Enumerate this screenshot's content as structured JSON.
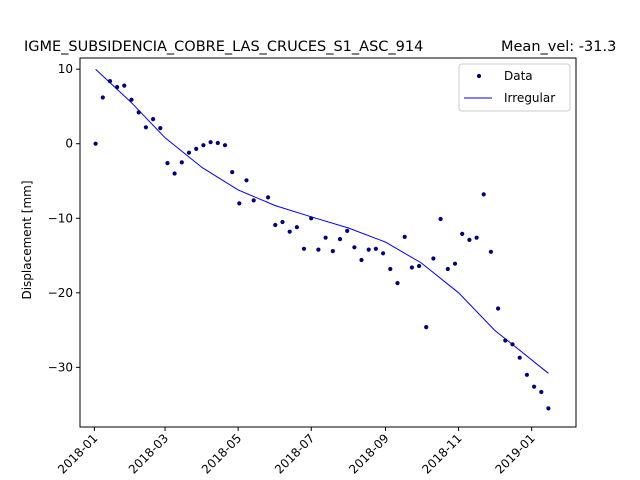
{
  "chart_data": {
    "type": "scatter",
    "title": "IGME_SUBSIDENCIA_COBRE_LAS_CRUCES_S1_ASC_914",
    "subtitle": "Mean_vel: -31.3",
    "xlabel": "",
    "ylabel": "Displacement [mm]",
    "xlim": [
      "2017-12-20",
      "2019-02-07"
    ],
    "ylim": [
      -38,
      11.5
    ],
    "x_ticks": [
      "2018-01",
      "2018-03",
      "2018-05",
      "2018-07",
      "2018-09",
      "2018-11",
      "2019-01"
    ],
    "y_ticks": [
      10,
      0,
      -10,
      -20,
      -30
    ],
    "legend_position": "top-right",
    "grid": false,
    "colors": {
      "data": "#00007f",
      "fit": "#0000ff",
      "frame": "#000000"
    },
    "series": [
      {
        "name": "Data",
        "kind": "points",
        "points": [
          [
            "2018-01-02",
            0.0
          ],
          [
            "2018-01-08",
            6.2
          ],
          [
            "2018-01-14",
            8.4
          ],
          [
            "2018-01-20",
            7.6
          ],
          [
            "2018-01-26",
            7.8
          ],
          [
            "2018-02-01",
            5.9
          ],
          [
            "2018-02-07",
            4.2
          ],
          [
            "2018-02-13",
            2.2
          ],
          [
            "2018-02-19",
            3.3
          ],
          [
            "2018-02-25",
            2.1
          ],
          [
            "2018-03-03",
            -2.6
          ],
          [
            "2018-03-09",
            -4.0
          ],
          [
            "2018-03-15",
            -2.5
          ],
          [
            "2018-03-21",
            -1.2
          ],
          [
            "2018-03-27",
            -0.7
          ],
          [
            "2018-04-02",
            -0.2
          ],
          [
            "2018-04-08",
            0.2
          ],
          [
            "2018-04-14",
            0.1
          ],
          [
            "2018-04-20",
            -0.2
          ],
          [
            "2018-04-26",
            -3.8
          ],
          [
            "2018-05-02",
            -8.0
          ],
          [
            "2018-05-08",
            -4.9
          ],
          [
            "2018-05-14",
            -7.6
          ],
          [
            "2018-05-26",
            -7.2
          ],
          [
            "2018-06-01",
            -10.9
          ],
          [
            "2018-06-07",
            -10.5
          ],
          [
            "2018-06-13",
            -11.8
          ],
          [
            "2018-06-19",
            -11.2
          ],
          [
            "2018-06-25",
            -14.1
          ],
          [
            "2018-07-01",
            -10.0
          ],
          [
            "2018-07-07",
            -14.2
          ],
          [
            "2018-07-13",
            -12.6
          ],
          [
            "2018-07-19",
            -14.4
          ],
          [
            "2018-07-25",
            -12.8
          ],
          [
            "2018-07-31",
            -11.7
          ],
          [
            "2018-08-06",
            -13.9
          ],
          [
            "2018-08-12",
            -15.6
          ],
          [
            "2018-08-18",
            -14.2
          ],
          [
            "2018-08-24",
            -14.1
          ],
          [
            "2018-08-30",
            -14.7
          ],
          [
            "2018-09-05",
            -16.8
          ],
          [
            "2018-09-11",
            -18.7
          ],
          [
            "2018-09-17",
            -12.5
          ],
          [
            "2018-09-23",
            -16.6
          ],
          [
            "2018-09-29",
            -16.4
          ],
          [
            "2018-10-05",
            -24.6
          ],
          [
            "2018-10-11",
            -15.4
          ],
          [
            "2018-10-17",
            -10.1
          ],
          [
            "2018-10-23",
            -16.8
          ],
          [
            "2018-10-29",
            -16.1
          ],
          [
            "2018-11-04",
            -12.1
          ],
          [
            "2018-11-10",
            -12.9
          ],
          [
            "2018-11-16",
            -12.6
          ],
          [
            "2018-11-22",
            -6.8
          ],
          [
            "2018-11-28",
            -14.5
          ],
          [
            "2018-12-04",
            -22.1
          ],
          [
            "2018-12-10",
            -26.4
          ],
          [
            "2018-12-16",
            -26.9
          ],
          [
            "2018-12-22",
            -28.7
          ],
          [
            "2018-12-28",
            -31.0
          ],
          [
            "2019-01-03",
            -32.6
          ],
          [
            "2019-01-09",
            -33.3
          ],
          [
            "2019-01-15",
            -35.5
          ]
        ]
      },
      {
        "name": "Irregular",
        "kind": "line",
        "points": [
          [
            "2018-01-02",
            10.0
          ],
          [
            "2018-02-01",
            5.5
          ],
          [
            "2018-03-01",
            0.8
          ],
          [
            "2018-04-01",
            -3.2
          ],
          [
            "2018-05-01",
            -6.2
          ],
          [
            "2018-06-01",
            -8.3
          ],
          [
            "2018-07-01",
            -9.8
          ],
          [
            "2018-08-01",
            -11.3
          ],
          [
            "2018-09-01",
            -13.2
          ],
          [
            "2018-10-01",
            -16.0
          ],
          [
            "2018-11-01",
            -20.0
          ],
          [
            "2018-12-01",
            -25.0
          ],
          [
            "2019-01-15",
            -30.8
          ]
        ]
      }
    ]
  }
}
